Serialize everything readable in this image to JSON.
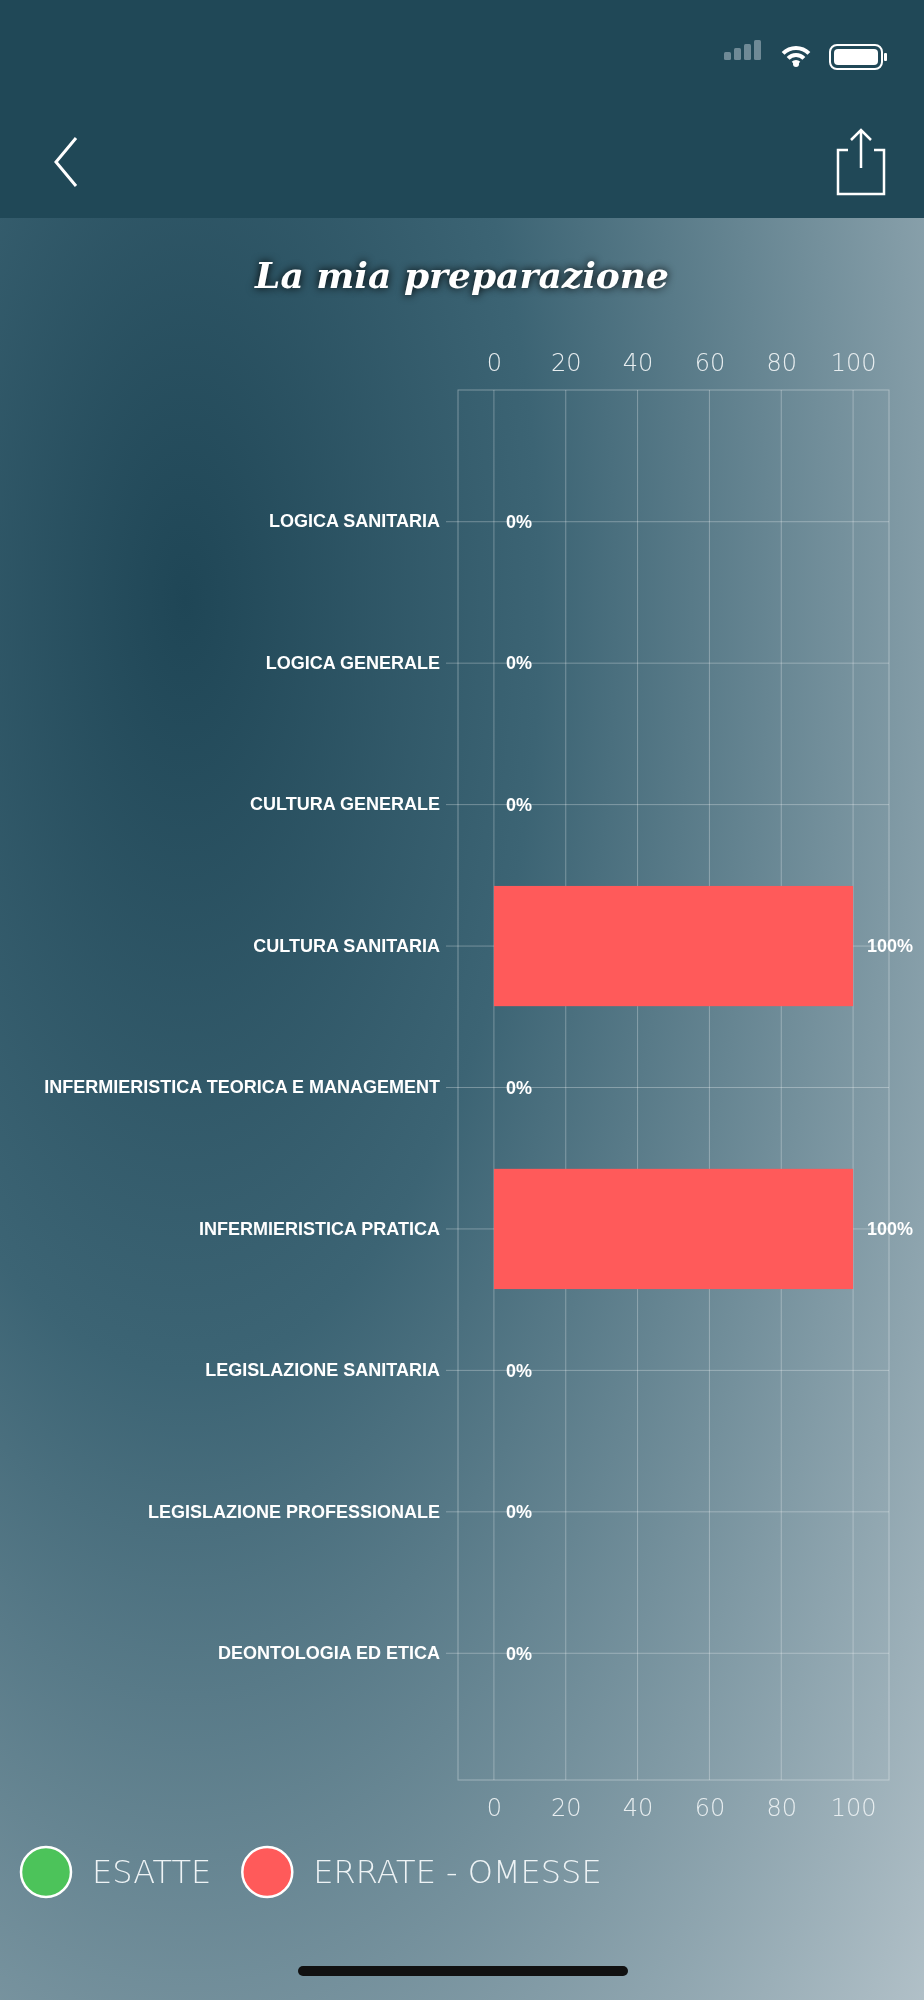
{
  "chart_data": {
    "type": "bar",
    "orientation": "horizontal",
    "title": "La mia preparazione",
    "categories": [
      "LOGICA SANITARIA",
      "LOGICA GENERALE",
      "CULTURA GENERALE",
      "CULTURA SANITARIA",
      "INFERMIERISTICA TEORICA E MANAGEMENT",
      "INFERMIERISTICA PRATICA",
      "LEGISLAZIONE SANITARIA",
      "LEGISLAZIONE PROFESSIONALE",
      "DEONTOLOGIA ED ETICA"
    ],
    "series": [
      {
        "name": "ESATTE",
        "color": "#4cc35a",
        "values": [
          0,
          0,
          0,
          0,
          0,
          0,
          0,
          0,
          0
        ]
      },
      {
        "name": "ERRATE - OMESSE",
        "color": "#ff5a5a",
        "values": [
          0,
          0,
          0,
          100,
          0,
          100,
          0,
          0,
          0
        ],
        "value_labels": [
          "0%",
          "0%",
          "0%",
          "100%",
          "0%",
          "100%",
          "0%",
          "0%",
          "0%"
        ]
      }
    ],
    "xlim": [
      -10,
      110
    ],
    "xticks": [
      0,
      20,
      40,
      60,
      80,
      100
    ],
    "x2lim": [
      -10,
      110
    ],
    "x2ticks": [
      0,
      20,
      40,
      60,
      80,
      100
    ],
    "grid": true,
    "legend": "bottom left"
  }
}
